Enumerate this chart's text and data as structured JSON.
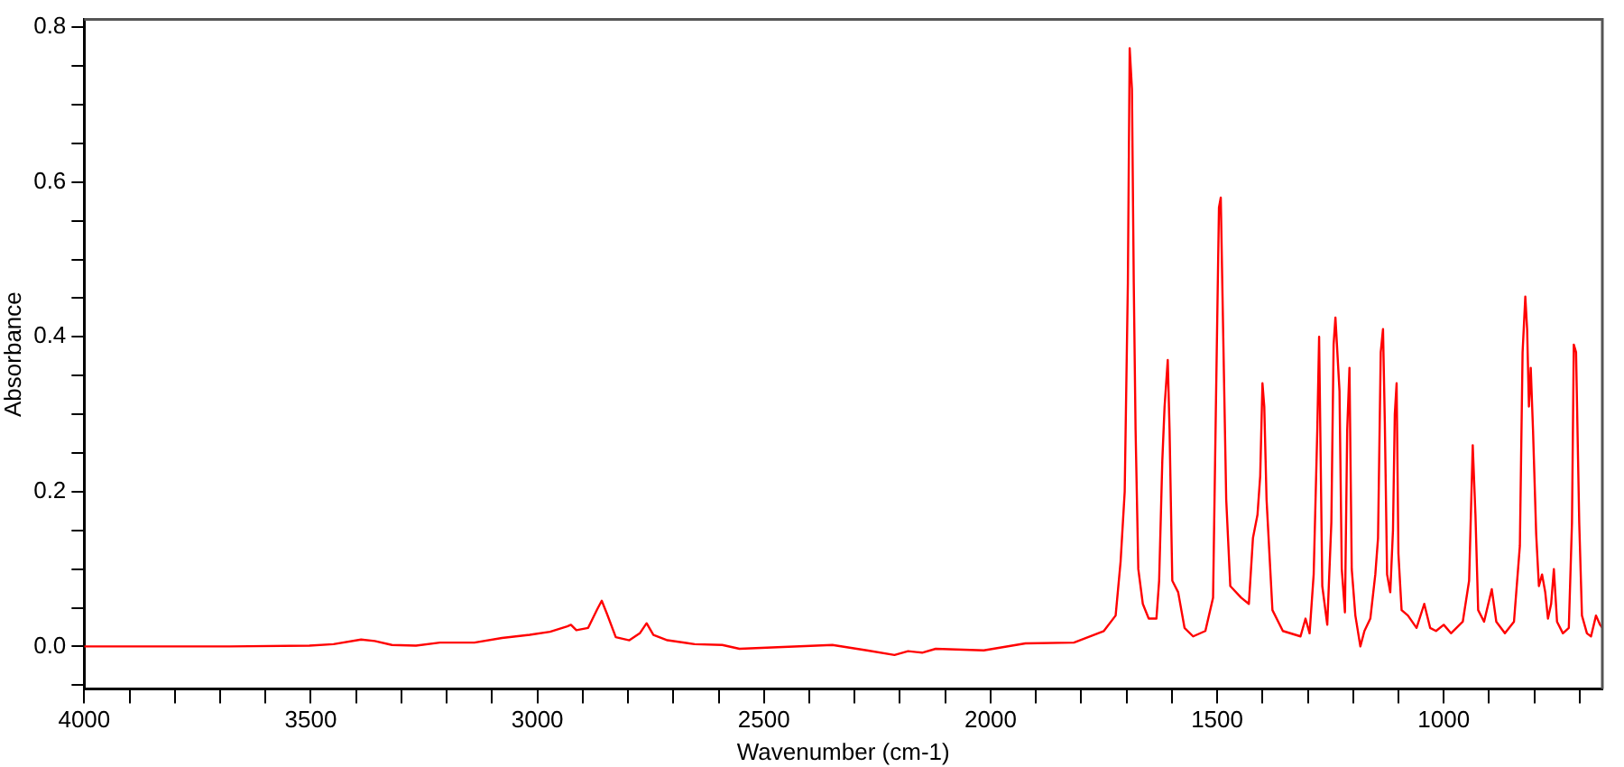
{
  "chart_data": {
    "type": "line",
    "xlabel": "Wavenumber (cm-1)",
    "ylabel": "Absorbance",
    "xlim": [
      4000,
      650
    ],
    "ylim": [
      -0.055,
      0.81
    ],
    "xticks": [
      4000,
      {
        "value": 3900,
        "label": null
      },
      {
        "value": 3800,
        "label": null
      },
      {
        "value": 3700,
        "label": null
      },
      {
        "value": 3600,
        "label": null
      },
      3500,
      {
        "value": 3400,
        "label": null
      },
      {
        "value": 3300,
        "label": null
      },
      {
        "value": 3200,
        "label": null
      },
      {
        "value": 3100,
        "label": null
      },
      3000,
      {
        "value": 2900,
        "label": null
      },
      {
        "value": 2800,
        "label": null
      },
      {
        "value": 2700,
        "label": null
      },
      {
        "value": 2600,
        "label": null
      },
      2500,
      {
        "value": 2400,
        "label": null
      },
      {
        "value": 2300,
        "label": null
      },
      {
        "value": 2200,
        "label": null
      },
      {
        "value": 2100,
        "label": null
      },
      2000,
      {
        "value": 1900,
        "label": null
      },
      {
        "value": 1800,
        "label": null
      },
      {
        "value": 1700,
        "label": null
      },
      {
        "value": 1600,
        "label": null
      },
      1500,
      {
        "value": 1400,
        "label": null
      },
      {
        "value": 1300,
        "label": null
      },
      {
        "value": 1200,
        "label": null
      },
      {
        "value": 1100,
        "label": null
      },
      1000,
      {
        "value": 900,
        "label": null
      },
      {
        "value": 800,
        "label": null
      },
      {
        "value": 700,
        "label": null
      }
    ],
    "yticks": [
      {
        "value": -0.05,
        "label": null
      },
      {
        "value": 0,
        "label": "0.0"
      },
      {
        "value": 0.05,
        "label": null
      },
      {
        "value": 0.1,
        "label": null
      },
      {
        "value": 0.15,
        "label": null
      },
      {
        "value": 0.2,
        "label": "0.2"
      },
      {
        "value": 0.25,
        "label": null
      },
      {
        "value": 0.3,
        "label": null
      },
      {
        "value": 0.35,
        "label": null
      },
      {
        "value": 0.4,
        "label": "0.4"
      },
      {
        "value": 0.45,
        "label": null
      },
      {
        "value": 0.5,
        "label": null
      },
      {
        "value": 0.55,
        "label": null
      },
      {
        "value": 0.6,
        "label": "0.6"
      },
      {
        "value": 0.65,
        "label": null
      },
      {
        "value": 0.7,
        "label": null
      },
      {
        "value": 0.75,
        "label": null
      },
      {
        "value": 0.8,
        "label": "0.8"
      }
    ],
    "grid": false,
    "legend": false,
    "marker": "none",
    "x": [
      4000,
      3686,
      3503,
      3450,
      3389,
      3359,
      3321,
      3268,
      3215,
      3139,
      3078,
      3017,
      2972,
      2934,
      2926,
      2914,
      2888,
      2868,
      2858,
      2847,
      2827,
      2797,
      2774,
      2759,
      2744,
      2713,
      2653,
      2592,
      2554,
      2470,
      2349,
      2273,
      2212,
      2182,
      2151,
      2121,
      2015,
      1923,
      1816,
      1750,
      1724,
      1713,
      1704,
      1697,
      1693,
      1688,
      1684,
      1680,
      1674,
      1664,
      1651,
      1634,
      1628,
      1621,
      1616,
      1609,
      1605,
      1599,
      1586,
      1572,
      1553,
      1526,
      1509,
      1503,
      1496,
      1492,
      1489,
      1480,
      1471,
      1447,
      1430,
      1421,
      1411,
      1405,
      1400,
      1396,
      1391,
      1378,
      1355,
      1316,
      1305,
      1296,
      1287,
      1279,
      1275,
      1268,
      1257,
      1248,
      1243,
      1239,
      1230,
      1225,
      1218,
      1213,
      1208,
      1203,
      1195,
      1184,
      1175,
      1162,
      1151,
      1145,
      1139,
      1134,
      1130,
      1125,
      1118,
      1112,
      1108,
      1104,
      1100,
      1093,
      1079,
      1060,
      1043,
      1030,
      1017,
      1000,
      984,
      958,
      944,
      936,
      930,
      924,
      911,
      894,
      884,
      865,
      845,
      832,
      826,
      820,
      816,
      812,
      808,
      803,
      796,
      790,
      783,
      776,
      770,
      763,
      757,
      750,
      737,
      724,
      717,
      713,
      708,
      701,
      695,
      684,
      675,
      664,
      655,
      650
    ],
    "series": [
      {
        "color": "#ff0000",
        "values": [
          0,
          0,
          0.001,
          0.003,
          0.009,
          0.007,
          0.002,
          0.001,
          0.005,
          0.005,
          0.011,
          0.015,
          0.019,
          0.026,
          0.028,
          0.021,
          0.024,
          0.048,
          0.059,
          0.043,
          0.012,
          0.008,
          0.017,
          0.03,
          0.015,
          0.008,
          0.003,
          0.002,
          -0.003,
          -0.001,
          0.002,
          -0.005,
          -0.011,
          -0.006,
          -0.008,
          -0.003,
          -0.005,
          0.004,
          0.005,
          0.02,
          0.04,
          0.11,
          0.2,
          0.47,
          0.773,
          0.72,
          0.47,
          0.28,
          0.1,
          0.055,
          0.036,
          0.036,
          0.085,
          0.24,
          0.31,
          0.37,
          0.28,
          0.085,
          0.07,
          0.024,
          0.013,
          0.02,
          0.063,
          0.3,
          0.567,
          0.58,
          0.48,
          0.19,
          0.078,
          0.063,
          0.055,
          0.14,
          0.17,
          0.22,
          0.34,
          0.31,
          0.19,
          0.047,
          0.02,
          0.013,
          0.036,
          0.017,
          0.093,
          0.28,
          0.4,
          0.078,
          0.028,
          0.16,
          0.39,
          0.425,
          0.33,
          0.1,
          0.044,
          0.28,
          0.36,
          0.1,
          0.04,
          0,
          0.02,
          0.036,
          0.093,
          0.14,
          0.38,
          0.41,
          0.29,
          0.093,
          0.07,
          0.15,
          0.3,
          0.34,
          0.12,
          0.047,
          0.04,
          0.024,
          0.055,
          0.024,
          0.02,
          0.028,
          0.017,
          0.032,
          0.085,
          0.26,
          0.17,
          0.047,
          0.032,
          0.074,
          0.032,
          0.017,
          0.032,
          0.13,
          0.38,
          0.452,
          0.41,
          0.31,
          0.36,
          0.28,
          0.145,
          0.078,
          0.093,
          0.07,
          0.036,
          0.055,
          0.1,
          0.032,
          0.017,
          0.024,
          0.16,
          0.39,
          0.38,
          0.16,
          0.04,
          0.017,
          0.013,
          0.04,
          0.028,
          0.024
        ]
      }
    ]
  }
}
